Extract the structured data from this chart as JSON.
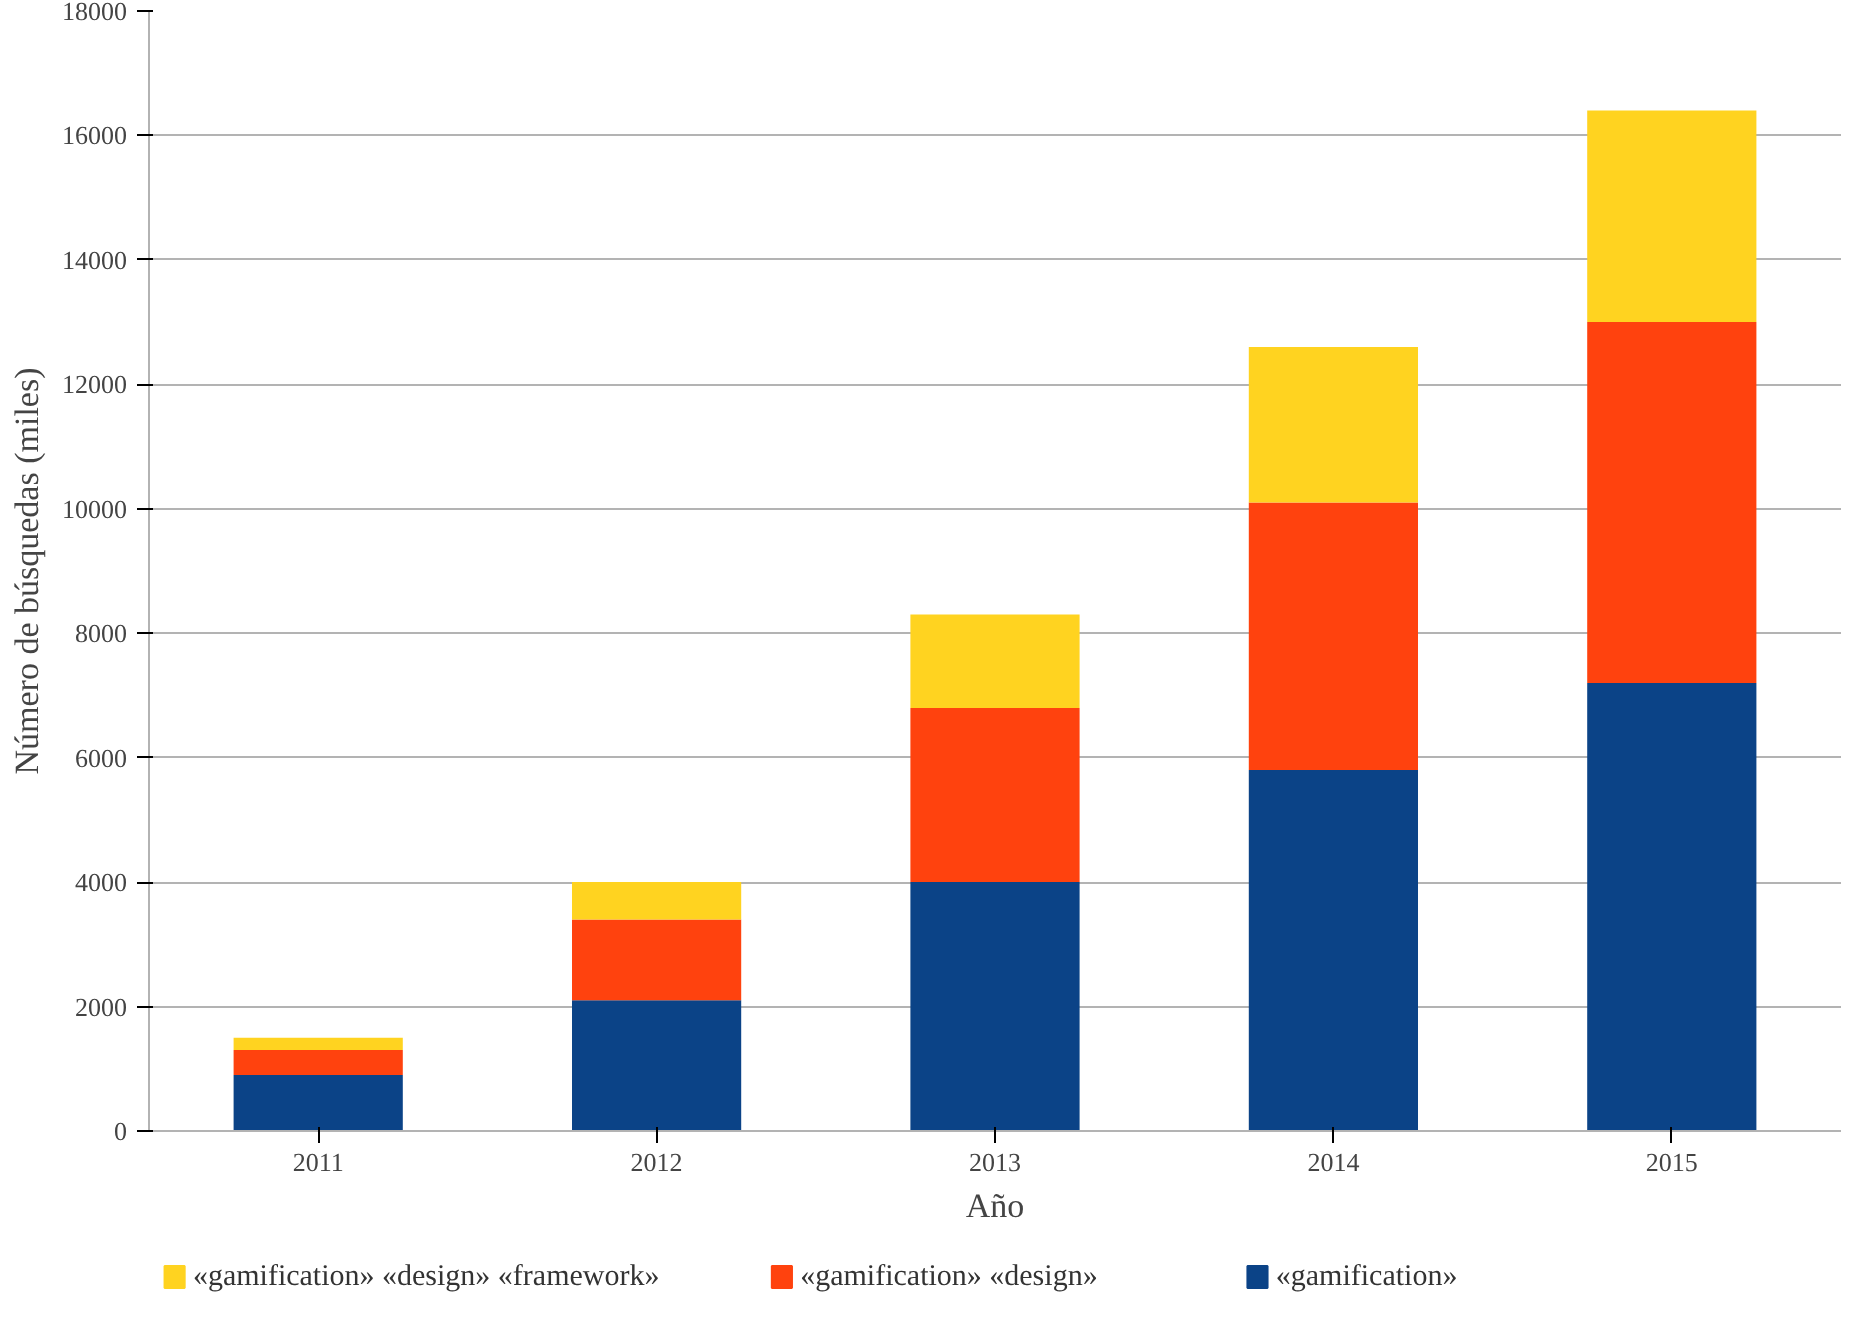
{
  "chart_data": {
    "type": "bar",
    "stacked": true,
    "xlabel": "Año",
    "ylabel": "Número de búsquedas (miles)",
    "categories": [
      "2011",
      "2012",
      "2013",
      "2014",
      "2015"
    ],
    "series": [
      {
        "name": "«gamification»",
        "color": "#0b4387",
        "values": [
          900,
          2100,
          4000,
          5800,
          7200
        ]
      },
      {
        "name": "«gamification» «design»",
        "color": "#ff420e",
        "values": [
          400,
          1300,
          2800,
          4300,
          5800
        ]
      },
      {
        "name": "«gamification» «design» «framework»",
        "color": "#ffd320",
        "values": [
          200,
          600,
          1500,
          2500,
          3400
        ]
      }
    ],
    "ylim": [
      0,
      18000
    ],
    "yticks": [
      0,
      2000,
      4000,
      6000,
      8000,
      10000,
      12000,
      14000,
      16000,
      18000
    ],
    "grid": "y",
    "legend": "bottom"
  }
}
